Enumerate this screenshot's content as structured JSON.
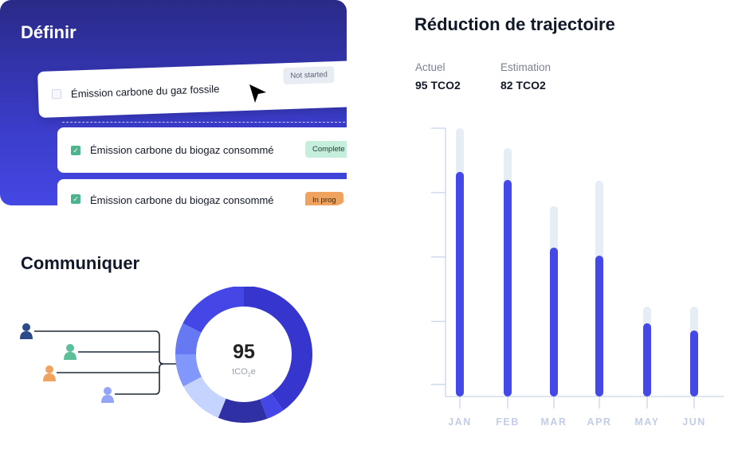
{
  "definir": {
    "title": "Définir",
    "tasks": [
      {
        "label": "Émission carbone du gaz fossile",
        "status": "Not started",
        "checked": false
      },
      {
        "label": "Émission carbone du biogaz consommé",
        "status": "Complete",
        "checked": true
      },
      {
        "label": "Émission carbone du biogaz consommé",
        "status": "In prog",
        "checked": true
      }
    ],
    "cursor_icon": "mouse-pointer-icon"
  },
  "communiquer": {
    "title": "Communiquer",
    "people_icons": [
      "person-icon",
      "person-icon",
      "person-icon",
      "person-icon"
    ],
    "people_colors": [
      "#2c4a8a",
      "#5bbf9a",
      "#f0a35e",
      "#93a5f8"
    ],
    "donut": {
      "value": "95",
      "unit": "tCO",
      "unit_sub": "2",
      "unit_suffix": "e"
    }
  },
  "reduction": {
    "title": "Réduction de trajectoire",
    "actuel_label": "Actuel",
    "actuel_value": "95 TCO2",
    "estimation_label": "Estimation",
    "estimation_value": "82 TCO2"
  },
  "chart_data": {
    "type": "bar",
    "categories": [
      "JAN",
      "FEB",
      "MAR",
      "APR",
      "MAY",
      "JUN"
    ],
    "series": [
      {
        "values": [
          100,
          92.6,
          71,
          80.4,
          33.5,
          33.5
        ],
        "color": "#e6edf5"
      },
      {
        "values": [
          83.7,
          80.7,
          55.5,
          52.5,
          27.3,
          24.6
        ],
        "color": "#4449e6"
      }
    ],
    "ylim": [
      0,
      100
    ],
    "grid": false,
    "y_tick_labels": false
  }
}
